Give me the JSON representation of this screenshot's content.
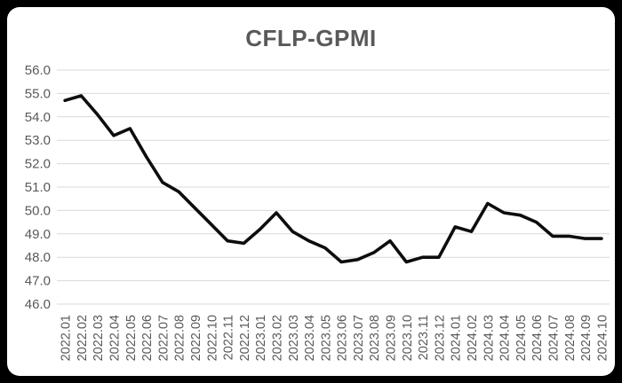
{
  "window": {
    "background_color": "#000000",
    "panel_color": "#ffffff"
  },
  "chart_data": {
    "type": "line",
    "title": "CFLP-GPMI",
    "title_color": "#595959",
    "legend": "none",
    "grid": "horizontal",
    "gridline_color": "#d9d9d9",
    "axis_label_color": "#595959",
    "xlabel": "",
    "ylabel": "",
    "ylim": [
      46.0,
      56.0
    ],
    "ytick_step": 1.0,
    "ytick_labels": [
      "56.0",
      "55.0",
      "54.0",
      "53.0",
      "52.0",
      "51.0",
      "50.0",
      "49.0",
      "48.0",
      "47.0",
      "46.0"
    ],
    "categories": [
      "2022.01",
      "2022.02",
      "2022.03",
      "2022.04",
      "2022.05",
      "2022.06",
      "2022.07",
      "2022.08",
      "2022.09",
      "2022.10",
      "2022.11",
      "2022.12",
      "2023.01",
      "2023.02",
      "2023.03",
      "2023.04",
      "2023.05",
      "2023.06",
      "2023.07",
      "2023.08",
      "2023.09",
      "2023.10",
      "2023.11",
      "2023.12",
      "2024.01",
      "2024.02",
      "2024.03",
      "2024.04",
      "2024.05",
      "2024.06",
      "2024.07",
      "2024.08",
      "2024.09",
      "2024.10"
    ],
    "series": [
      {
        "name": "CFLP-GPMI",
        "color": "#0d0d0d",
        "values": [
          54.7,
          54.9,
          54.1,
          53.2,
          53.5,
          52.3,
          51.2,
          50.8,
          50.1,
          49.4,
          48.7,
          48.6,
          49.2,
          49.9,
          49.1,
          48.7,
          48.4,
          47.8,
          47.9,
          48.2,
          48.7,
          47.8,
          48.0,
          48.0,
          49.3,
          49.1,
          50.3,
          49.9,
          49.8,
          49.5,
          48.9,
          48.9,
          48.8,
          48.8
        ]
      }
    ]
  }
}
